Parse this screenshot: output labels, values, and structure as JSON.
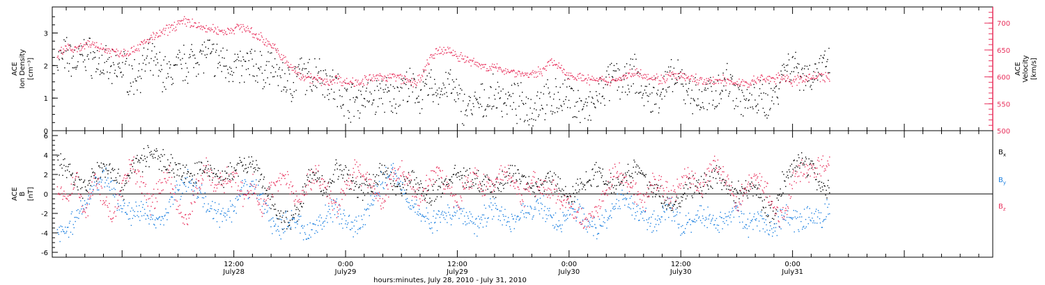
{
  "colors": {
    "density": "#000000",
    "velocity": "#e8305c",
    "bx": "#000000",
    "by": "#1a7fe0",
    "bz": "#e8305c",
    "axis": "#000000"
  },
  "footer": {
    "caption": "hours:minutes, July 28, 2010 - July 31, 2010"
  },
  "chart_data": [
    {
      "id": "top-panel",
      "type": "scatter",
      "x_range_hours": [
        -7.5,
        93.5
      ],
      "x_ticks": [
        {
          "hour": 12,
          "time": "12:00",
          "date": "July28"
        },
        {
          "hour": 24,
          "time": "0:00",
          "date": "July29"
        },
        {
          "hour": 36,
          "time": "12:00",
          "date": "July29"
        },
        {
          "hour": 48,
          "time": "0:00",
          "date": "July30"
        },
        {
          "hour": 60,
          "time": "12:00",
          "date": "July30"
        },
        {
          "hour": 72,
          "time": "0:00",
          "date": "July31"
        }
      ],
      "left_axis": {
        "label_line1": "ACE",
        "label_line2": "Ion Density",
        "units": "[cm⁻³]",
        "ylim": [
          0,
          3.8
        ],
        "ticks": [
          "0",
          "1",
          "2",
          "3"
        ],
        "tick_values": [
          0,
          1,
          2,
          3
        ]
      },
      "right_axis": {
        "label_line1": "ACE",
        "label_line2": "Velocity",
        "units": "[km/s]",
        "ylim": [
          500,
          730
        ],
        "ticks": [
          "500",
          "550",
          "600",
          "650",
          "700"
        ],
        "tick_values": [
          500,
          550,
          600,
          650,
          700
        ]
      },
      "series": [
        {
          "axis": "left",
          "x": [
            -7,
            -6,
            -5,
            -4,
            -3,
            -2,
            -1,
            0,
            1,
            2,
            3,
            4,
            5,
            6,
            7,
            8,
            9,
            10,
            11,
            12,
            13,
            14,
            15,
            16,
            17,
            18,
            19,
            20,
            21,
            22,
            23,
            24,
            25,
            26,
            27,
            28,
            29,
            30,
            31,
            32,
            33,
            34,
            35,
            36,
            37,
            38,
            39,
            40,
            41,
            42,
            43,
            44,
            45,
            46,
            47,
            48,
            49,
            50,
            51,
            52,
            53,
            54,
            55,
            56,
            57,
            58,
            59,
            60,
            61,
            62,
            63,
            64,
            65,
            66,
            67,
            68,
            69,
            70,
            71,
            72,
            73,
            74,
            75,
            76
          ],
          "y": [
            2.2,
            2.3,
            2.1,
            2.4,
            2.2,
            2.0,
            1.8,
            2.0,
            1.6,
            1.9,
            2.2,
            1.9,
            1.7,
            2.0,
            2.1,
            2.3,
            2.4,
            2.2,
            2.1,
            2.0,
            1.9,
            2.1,
            1.8,
            2.0,
            1.7,
            1.4,
            1.8,
            1.6,
            1.9,
            1.5,
            1.3,
            1.0,
            0.9,
            1.1,
            1.0,
            1.2,
            0.9,
            1.4,
            1.3,
            1.1,
            1.4,
            1.2,
            1.5,
            1.0,
            0.7,
            0.8,
            0.9,
            1.1,
            1.0,
            0.9,
            0.8,
            0.7,
            1.0,
            0.9,
            1.1,
            1.0,
            0.8,
            0.6,
            1.0,
            1.4,
            1.7,
            1.4,
            1.8,
            1.1,
            1.0,
            1.3,
            1.6,
            1.5,
            1.2,
            0.9,
            1.1,
            1.3,
            1.6,
            1.2,
            0.8,
            1.0,
            0.9,
            1.1,
            1.9,
            2.1,
            1.8,
            1.7,
            2.0,
            1.9
          ],
          "name": ""
        },
        {
          "axis": "right",
          "x": [
            -7,
            -6,
            -5,
            -4,
            -3,
            -2,
            -1,
            0,
            1,
            2,
            3,
            4,
            5,
            6,
            7,
            8,
            9,
            10,
            11,
            12,
            13,
            14,
            15,
            16,
            17,
            18,
            19,
            20,
            21,
            22,
            23,
            24,
            25,
            26,
            27,
            28,
            29,
            30,
            31,
            32,
            33,
            34,
            35,
            36,
            37,
            38,
            39,
            40,
            41,
            42,
            43,
            44,
            45,
            46,
            47,
            48,
            49,
            50,
            51,
            52,
            53,
            54,
            55,
            56,
            57,
            58,
            59,
            60,
            61,
            62,
            63,
            64,
            65,
            66,
            67,
            68,
            69,
            70,
            71,
            72,
            73,
            74,
            75,
            76
          ],
          "y": [
            640,
            655,
            650,
            658,
            662,
            652,
            648,
            645,
            650,
            660,
            672,
            680,
            690,
            700,
            705,
            695,
            690,
            688,
            685,
            690,
            695,
            680,
            672,
            660,
            640,
            620,
            605,
            600,
            595,
            590,
            598,
            590,
            592,
            594,
            598,
            600,
            602,
            598,
            590,
            595,
            635,
            648,
            650,
            640,
            632,
            625,
            620,
            616,
            614,
            610,
            606,
            604,
            612,
            630,
            616,
            605,
            600,
            596,
            594,
            592,
            596,
            602,
            610,
            606,
            598,
            596,
            604,
            600,
            598,
            594,
            590,
            596,
            592,
            590,
            588,
            594,
            598,
            596,
            602,
            590,
            598,
            600,
            602,
            598
          ],
          "name": ""
        }
      ]
    },
    {
      "id": "bottom-panel",
      "type": "scatter",
      "x_range_hours": [
        -7.5,
        93.5
      ],
      "y_axis": {
        "label_line1": "ACE",
        "label_line2": "B",
        "units": "[nT]",
        "ylim": [
          -6.5,
          6.5
        ],
        "ticks": [
          "-6",
          "-4",
          "-2",
          "0",
          "2",
          "4",
          "6"
        ],
        "tick_values": [
          -6,
          -4,
          -2,
          0,
          2,
          4,
          6
        ]
      },
      "series": [
        {
          "name": "B",
          "sub": "x",
          "x": [
            -7,
            -6,
            -5,
            -4,
            -3,
            -2,
            -1,
            0,
            1,
            2,
            3,
            4,
            5,
            6,
            7,
            8,
            9,
            10,
            11,
            12,
            13,
            14,
            15,
            16,
            17,
            18,
            19,
            20,
            21,
            22,
            23,
            24,
            25,
            26,
            27,
            28,
            29,
            30,
            31,
            32,
            33,
            34,
            35,
            36,
            37,
            38,
            39,
            40,
            41,
            42,
            43,
            44,
            45,
            46,
            47,
            48,
            49,
            50,
            51,
            52,
            53,
            54,
            55,
            56,
            57,
            58,
            59,
            60,
            61,
            62,
            63,
            64,
            65,
            66,
            67,
            68,
            69,
            70,
            71,
            72,
            73,
            74,
            75,
            76
          ],
          "y": [
            3.5,
            2.8,
            1.5,
            0.5,
            2.0,
            3.0,
            2.5,
            0.5,
            2.8,
            3.5,
            4.0,
            3.8,
            3.2,
            2.5,
            1.8,
            2.2,
            2.8,
            2.0,
            1.5,
            2.5,
            3.0,
            2.8,
            1.5,
            -1.0,
            -2.5,
            -3.0,
            -1.5,
            2.0,
            1.5,
            0.5,
            2.8,
            2.0,
            1.0,
            0.5,
            1.5,
            2.5,
            1.2,
            0.8,
            1.6,
            0.5,
            -0.5,
            0.8,
            1.5,
            2.0,
            1.8,
            1.2,
            1.0,
            0.5,
            1.5,
            2.2,
            1.8,
            0.6,
            1.0,
            1.8,
            0.5,
            -0.3,
            0.8,
            1.6,
            2.2,
            1.4,
            1.0,
            2.0,
            2.8,
            1.5,
            0.5,
            -0.5,
            -1.5,
            -0.5,
            1.0,
            0.5,
            1.5,
            2.2,
            0.8,
            0.2,
            0.6,
            1.0,
            -1.5,
            -2.0,
            1.5,
            3.0,
            3.5,
            2.5,
            1.0,
            0.5
          ]
        },
        {
          "name": "B",
          "sub": "y",
          "x": [
            -7,
            -6,
            -5,
            -4,
            -3,
            -2,
            -1,
            0,
            1,
            2,
            3,
            4,
            5,
            6,
            7,
            8,
            9,
            10,
            11,
            12,
            13,
            14,
            15,
            16,
            17,
            18,
            19,
            20,
            21,
            22,
            23,
            24,
            25,
            26,
            27,
            28,
            29,
            30,
            31,
            32,
            33,
            34,
            35,
            36,
            37,
            38,
            39,
            40,
            41,
            42,
            43,
            44,
            45,
            46,
            47,
            48,
            49,
            50,
            51,
            52,
            53,
            54,
            55,
            56,
            57,
            58,
            59,
            60,
            61,
            62,
            63,
            64,
            65,
            66,
            67,
            68,
            69,
            70,
            71,
            72,
            73,
            74,
            75,
            76
          ],
          "y": [
            -4.0,
            -3.5,
            -2.5,
            -1.0,
            1.0,
            2.0,
            0.5,
            -1.5,
            -2.0,
            -1.5,
            -2.5,
            -3.0,
            -1.0,
            0.5,
            1.5,
            0.5,
            -1.0,
            -2.0,
            -2.5,
            -1.5,
            0.5,
            1.0,
            -0.5,
            -3.0,
            -3.5,
            -2.5,
            -3.0,
            -4.0,
            -3.0,
            -2.0,
            -1.5,
            -3.0,
            -3.5,
            -2.0,
            -0.5,
            1.5,
            2.5,
            1.0,
            -1.0,
            -2.0,
            -2.8,
            -2.5,
            -2.0,
            -1.5,
            -2.5,
            -3.0,
            -2.0,
            -1.0,
            -2.5,
            -3.0,
            -1.5,
            -2.0,
            -1.0,
            -2.5,
            -3.0,
            -2.0,
            -1.5,
            -3.0,
            -3.5,
            -2.5,
            -1.0,
            -0.5,
            -1.5,
            -2.5,
            -3.0,
            -2.0,
            -1.5,
            -3.5,
            -3.0,
            -2.0,
            -2.5,
            -3.0,
            -2.0,
            -1.5,
            -3.5,
            -2.5,
            -3.0,
            -3.5,
            -2.0,
            -2.5,
            -3.0,
            -2.0,
            -2.5,
            -1.5
          ]
        },
        {
          "name": "B",
          "sub": "z",
          "x": [
            -7,
            -6,
            -5,
            -4,
            -3,
            -2,
            -1,
            0,
            1,
            2,
            3,
            4,
            5,
            6,
            7,
            8,
            9,
            10,
            11,
            12,
            13,
            14,
            15,
            16,
            17,
            18,
            19,
            20,
            21,
            22,
            23,
            24,
            25,
            26,
            27,
            28,
            29,
            30,
            31,
            32,
            33,
            34,
            35,
            36,
            37,
            38,
            39,
            40,
            41,
            42,
            43,
            44,
            45,
            46,
            47,
            48,
            49,
            50,
            51,
            52,
            53,
            54,
            55,
            56,
            57,
            58,
            59,
            60,
            61,
            62,
            63,
            64,
            65,
            66,
            67,
            68,
            69,
            70,
            71,
            72,
            73,
            74,
            75,
            76
          ],
          "y": [
            1.0,
            -1.0,
            2.0,
            -2.0,
            1.5,
            -0.5,
            -2.5,
            1.0,
            3.0,
            1.5,
            -1.0,
            0.5,
            2.0,
            -1.5,
            -3.0,
            1.0,
            2.5,
            0.5,
            1.5,
            2.0,
            -0.5,
            1.0,
            -1.5,
            0.5,
            2.0,
            1.0,
            -1.0,
            1.5,
            2.0,
            0.5,
            -1.5,
            1.0,
            2.5,
            1.5,
            0.5,
            -1.0,
            2.0,
            2.5,
            1.0,
            -0.5,
            1.5,
            2.5,
            0.5,
            -1.0,
            1.5,
            2.0,
            0.5,
            1.0,
            2.5,
            1.0,
            -0.5,
            1.5,
            0.5,
            1.0,
            -0.5,
            -1.0,
            -2.0,
            -3.0,
            -1.5,
            1.0,
            2.5,
            1.5,
            0.5,
            -1.0,
            1.5,
            1.0,
            -0.5,
            1.5,
            2.0,
            0.5,
            2.5,
            2.8,
            1.5,
            -1.0,
            1.0,
            2.0,
            0.5,
            -1.5,
            -2.5,
            1.5,
            2.5,
            2.0,
            3.0,
            2.5
          ]
        }
      ]
    }
  ]
}
